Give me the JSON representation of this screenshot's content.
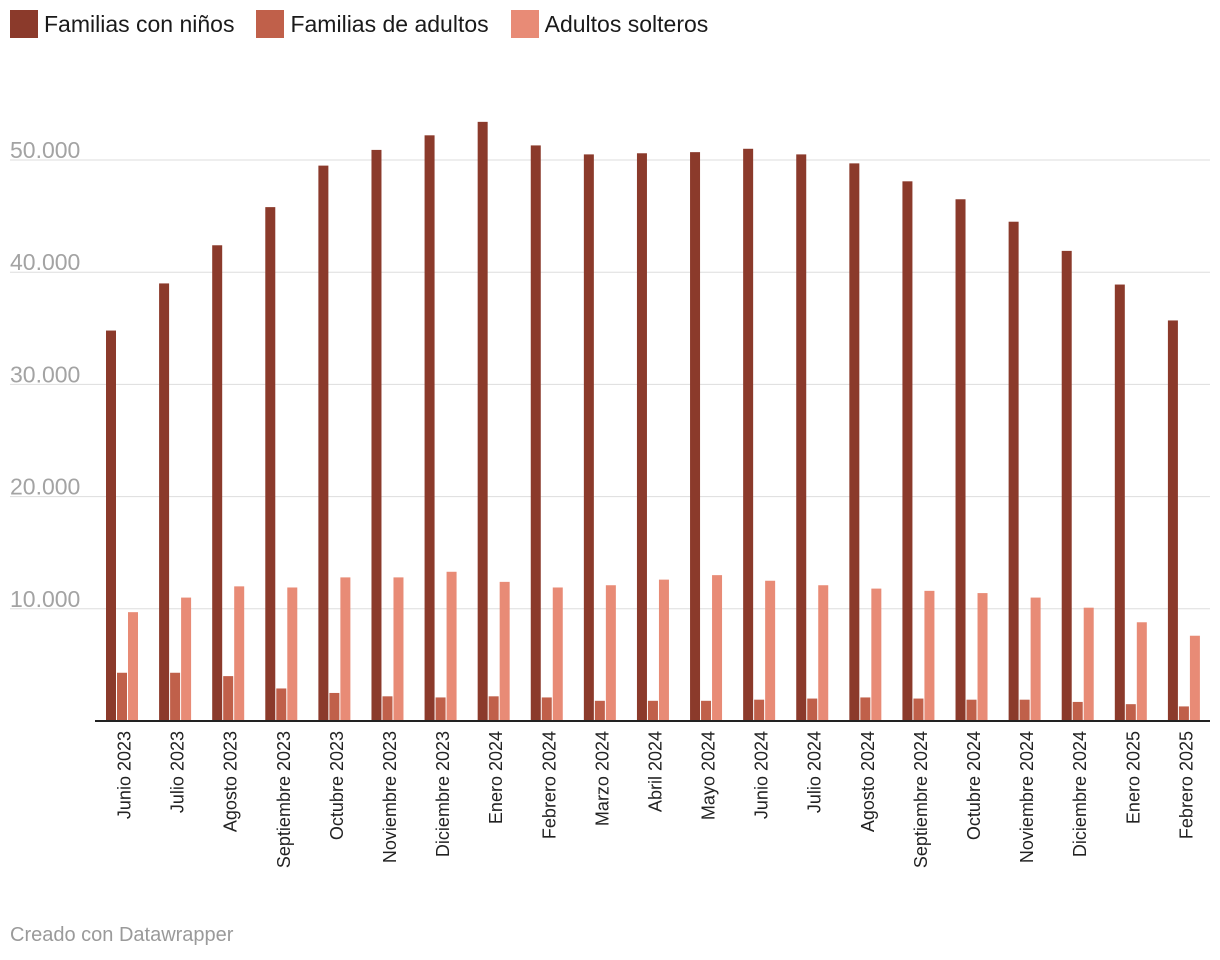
{
  "chart_data": {
    "type": "bar",
    "title": "",
    "xlabel": "",
    "ylabel": "",
    "ylim": [
      0,
      56000
    ],
    "yticks": [
      10000,
      20000,
      30000,
      40000,
      50000
    ],
    "ytick_labels": [
      "10.000",
      "20.000",
      "30.000",
      "40.000",
      "50.000"
    ],
    "grid": true,
    "legend_position": "top-left",
    "categories": [
      "Junio 2023",
      "Julio 2023",
      "Agosto 2023",
      "Septiembre 2023",
      "Octubre 2023",
      "Noviembre 2023",
      "Diciembre 2023",
      "Enero 2024",
      "Febrero 2024",
      "Marzo 2024",
      "Abril 2024",
      "Mayo 2024",
      "Junio 2024",
      "Julio 2024",
      "Agosto 2024",
      "Septiembre 2024",
      "Octubre 2024",
      "Noviembre 2024",
      "Diciembre 2024",
      "Enero 2025",
      "Febrero 2025"
    ],
    "series": [
      {
        "name": "Familias con niños",
        "color": "#8b3a2b",
        "values": [
          34800,
          39000,
          42400,
          45800,
          49500,
          50900,
          52200,
          53400,
          51300,
          50500,
          50600,
          50700,
          51000,
          50500,
          49700,
          48100,
          46500,
          44500,
          41900,
          38900,
          35700
        ]
      },
      {
        "name": "Familias de adultos",
        "color": "#c0604a",
        "values": [
          4300,
          4300,
          4000,
          2900,
          2500,
          2200,
          2100,
          2200,
          2100,
          1800,
          1800,
          1800,
          1900,
          2000,
          2100,
          2000,
          1900,
          1900,
          1700,
          1500,
          1300
        ]
      },
      {
        "name": "Adultos solteros",
        "color": "#e88b76",
        "values": [
          9700,
          11000,
          12000,
          11900,
          12800,
          12800,
          13300,
          12400,
          11900,
          12100,
          12600,
          13000,
          12500,
          12100,
          11800,
          11600,
          11400,
          11000,
          10100,
          8800,
          7600
        ]
      }
    ]
  },
  "footer": {
    "credit": "Creado con Datawrapper"
  }
}
